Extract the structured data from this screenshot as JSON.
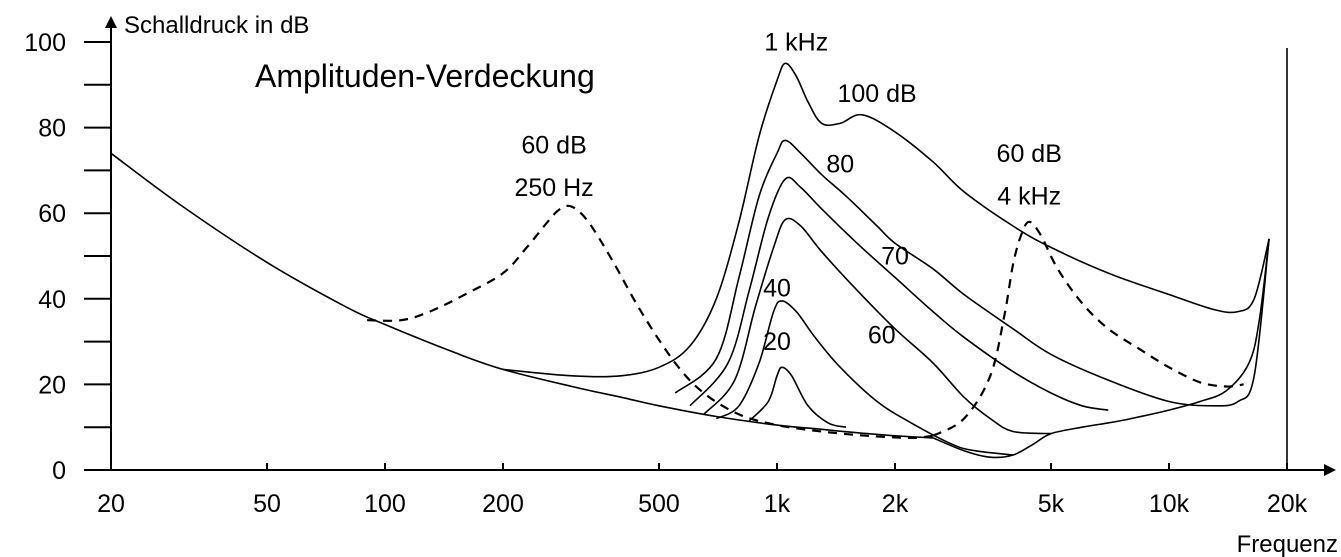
{
  "chart_data": {
    "type": "line",
    "title": "Amplituden-Verdeckung",
    "ylabel": "Schalldruck in dB",
    "xlabel": "Frequenz",
    "x_scale": "log",
    "xlim": [
      20,
      20000
    ],
    "ylim": [
      0,
      100
    ],
    "x_ticks": [
      {
        "value": 20,
        "label": "20"
      },
      {
        "value": 50,
        "label": "50"
      },
      {
        "value": 100,
        "label": "100"
      },
      {
        "value": 200,
        "label": "200"
      },
      {
        "value": 500,
        "label": "500"
      },
      {
        "value": 1000,
        "label": "1k"
      },
      {
        "value": 2000,
        "label": "2k"
      },
      {
        "value": 5000,
        "label": "5k"
      },
      {
        "value": 10000,
        "label": "10k"
      },
      {
        "value": 20000,
        "label": "20k"
      }
    ],
    "y_ticks": [
      0,
      20,
      40,
      60,
      80,
      100
    ],
    "y_minor_ticks": [
      10,
      30,
      50,
      70,
      90
    ],
    "grid": false,
    "annotations": [
      {
        "text": "1 kHz",
        "x": 1120,
        "y": 98
      },
      {
        "text": "100 dB",
        "x": 1800,
        "y": 86
      },
      {
        "text": "80",
        "x": 1450,
        "y": 69.5
      },
      {
        "text": "70",
        "x": 2000,
        "y": 48
      },
      {
        "text": "60",
        "x": 1850,
        "y": 29.5
      },
      {
        "text": "40",
        "x": 1000,
        "y": 40.5
      },
      {
        "text": "20",
        "x": 1000,
        "y": 28
      },
      {
        "text": "60 dB",
        "x": 270,
        "y": 74
      },
      {
        "text": "250 Hz",
        "x": 270,
        "y": 64
      },
      {
        "text": "60 dB",
        "x": 4400,
        "y": 72
      },
      {
        "text": "4 kHz",
        "x": 4400,
        "y": 62
      }
    ],
    "series": [
      {
        "style": "solid",
        "points": [
          [
            20,
            74
          ],
          [
            30,
            62
          ],
          [
            50,
            48.5
          ],
          [
            80,
            38
          ],
          [
            100,
            34
          ],
          [
            150,
            27.5
          ],
          [
            200,
            23.5
          ],
          [
            300,
            19.5
          ],
          [
            400,
            17
          ],
          [
            500,
            15
          ],
          [
            700,
            12.5
          ],
          [
            1000,
            10.5
          ],
          [
            1300,
            9.5
          ],
          [
            1700,
            8.5
          ],
          [
            2000,
            8
          ],
          [
            2500,
            7.5
          ]
        ]
      },
      {
        "style": "solid",
        "points": [
          [
            2500,
            7.5
          ],
          [
            3000,
            4.5
          ],
          [
            3500,
            3
          ],
          [
            4000,
            3.5
          ],
          [
            4500,
            6
          ],
          [
            5000,
            8.5
          ],
          [
            6000,
            10
          ],
          [
            7000,
            11
          ],
          [
            8000,
            12
          ],
          [
            10000,
            14
          ],
          [
            12000,
            16
          ],
          [
            14000,
            18.5
          ],
          [
            16000,
            25
          ],
          [
            17000,
            35
          ],
          [
            18000,
            54
          ]
        ]
      },
      {
        "style": "solid",
        "points": [
          [
            200,
            23.5
          ],
          [
            300,
            22
          ],
          [
            400,
            22
          ],
          [
            500,
            24
          ],
          [
            600,
            29
          ],
          [
            700,
            40
          ],
          [
            800,
            58
          ],
          [
            900,
            78
          ],
          [
            1000,
            91
          ],
          [
            1050,
            95
          ],
          [
            1120,
            92
          ],
          [
            1200,
            86
          ],
          [
            1300,
            81
          ],
          [
            1450,
            81
          ],
          [
            1650,
            83
          ],
          [
            2000,
            79
          ],
          [
            2500,
            72
          ],
          [
            3000,
            65
          ],
          [
            4000,
            57
          ],
          [
            5000,
            52
          ],
          [
            7000,
            46
          ],
          [
            10000,
            41
          ],
          [
            13000,
            37.5
          ],
          [
            15000,
            37
          ],
          [
            16500,
            40
          ],
          [
            18000,
            54
          ]
        ]
      },
      {
        "style": "solid",
        "points": [
          [
            550,
            18
          ],
          [
            700,
            26
          ],
          [
            800,
            45
          ],
          [
            900,
            64
          ],
          [
            1000,
            74
          ],
          [
            1050,
            77
          ],
          [
            1150,
            74
          ],
          [
            1300,
            69
          ],
          [
            1500,
            64
          ],
          [
            1800,
            57
          ],
          [
            2000,
            53
          ],
          [
            2500,
            47
          ],
          [
            3000,
            41
          ],
          [
            4000,
            33
          ],
          [
            5000,
            27
          ],
          [
            7000,
            21
          ],
          [
            10000,
            16
          ],
          [
            13000,
            15
          ],
          [
            15000,
            16
          ],
          [
            16500,
            22
          ],
          [
            18000,
            54
          ]
        ]
      },
      {
        "style": "solid",
        "points": [
          [
            600,
            15
          ],
          [
            750,
            25
          ],
          [
            850,
            42
          ],
          [
            950,
            59
          ],
          [
            1050,
            68
          ],
          [
            1150,
            66
          ],
          [
            1300,
            61
          ],
          [
            1600,
            53
          ],
          [
            2000,
            45
          ],
          [
            2500,
            37
          ],
          [
            3000,
            31
          ],
          [
            4000,
            23
          ],
          [
            5000,
            18
          ],
          [
            6000,
            15
          ],
          [
            7000,
            14
          ]
        ]
      },
      {
        "style": "solid",
        "points": [
          [
            650,
            13
          ],
          [
            780,
            21
          ],
          [
            880,
            38
          ],
          [
            980,
            52
          ],
          [
            1050,
            58.5
          ],
          [
            1150,
            57
          ],
          [
            1300,
            51
          ],
          [
            1600,
            42
          ],
          [
            2000,
            33
          ],
          [
            2500,
            25
          ],
          [
            3000,
            17
          ],
          [
            3500,
            12
          ],
          [
            4000,
            9
          ],
          [
            5000,
            8.5
          ]
        ]
      },
      {
        "style": "solid",
        "points": [
          [
            700,
            12
          ],
          [
            800,
            15
          ],
          [
            900,
            25
          ],
          [
            980,
            37
          ],
          [
            1030,
            39.5
          ],
          [
            1120,
            37
          ],
          [
            1250,
            31
          ],
          [
            1450,
            24
          ],
          [
            1800,
            16
          ],
          [
            2200,
            11
          ],
          [
            2800,
            6
          ],
          [
            3200,
            4.5
          ],
          [
            4000,
            3.5
          ]
        ]
      },
      {
        "style": "solid",
        "points": [
          [
            850,
            11.5
          ],
          [
            950,
            16
          ],
          [
            1000,
            22
          ],
          [
            1030,
            24
          ],
          [
            1090,
            22
          ],
          [
            1200,
            15
          ],
          [
            1350,
            11
          ],
          [
            1500,
            10
          ]
        ]
      },
      {
        "style": "dashed",
        "points": [
          [
            90,
            35
          ],
          [
            110,
            35
          ],
          [
            130,
            37
          ],
          [
            160,
            41
          ],
          [
            200,
            46
          ],
          [
            230,
            52
          ],
          [
            260,
            58
          ],
          [
            280,
            61
          ],
          [
            300,
            61.5
          ],
          [
            330,
            58
          ],
          [
            380,
            49
          ],
          [
            450,
            37
          ],
          [
            550,
            25
          ],
          [
            650,
            18
          ],
          [
            800,
            13
          ],
          [
            1000,
            10.5
          ],
          [
            1300,
            9
          ],
          [
            1700,
            8
          ],
          [
            2200,
            7.5
          ],
          [
            2500,
            8
          ]
        ]
      },
      {
        "style": "dashed",
        "points": [
          [
            2500,
            8
          ],
          [
            3000,
            12
          ],
          [
            3500,
            22
          ],
          [
            3800,
            36
          ],
          [
            4000,
            48
          ],
          [
            4200,
            55
          ],
          [
            4400,
            58
          ],
          [
            4700,
            55
          ],
          [
            5200,
            47
          ],
          [
            6000,
            39
          ],
          [
            7000,
            33
          ],
          [
            8500,
            28
          ],
          [
            10000,
            24
          ],
          [
            12000,
            20.5
          ],
          [
            14000,
            19.5
          ],
          [
            15500,
            20
          ]
        ]
      }
    ]
  }
}
